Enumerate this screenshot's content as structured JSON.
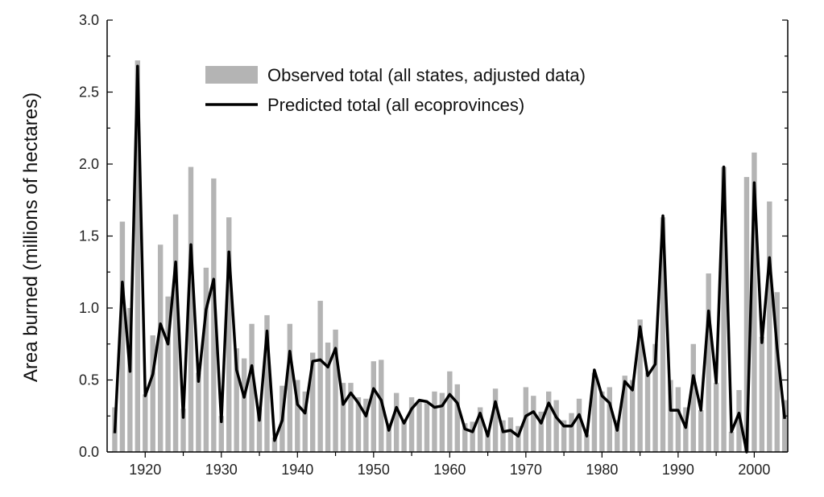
{
  "chart_data": {
    "type": "bar",
    "title": "",
    "xlabel": "",
    "ylabel": "Area burned (millions of hectares)",
    "xlim": [
      1915,
      2004.4
    ],
    "ylim": [
      0,
      3.0
    ],
    "grid": false,
    "legend_placement": "top-center",
    "yticks": [
      "0.0",
      "0.5",
      "1.0",
      "1.5",
      "2.0",
      "2.5",
      "3.0"
    ],
    "xticks": [
      "1920",
      "1930",
      "1940",
      "1950",
      "1960",
      "1970",
      "1980",
      "1990",
      "2000"
    ],
    "years": [
      1916,
      1917,
      1918,
      1919,
      1920,
      1921,
      1922,
      1923,
      1924,
      1925,
      1926,
      1927,
      1928,
      1929,
      1930,
      1931,
      1932,
      1933,
      1934,
      1935,
      1936,
      1937,
      1938,
      1939,
      1940,
      1941,
      1942,
      1943,
      1944,
      1945,
      1946,
      1947,
      1948,
      1949,
      1950,
      1951,
      1952,
      1953,
      1954,
      1955,
      1956,
      1957,
      1958,
      1959,
      1960,
      1961,
      1962,
      1963,
      1964,
      1965,
      1966,
      1967,
      1968,
      1969,
      1970,
      1971,
      1972,
      1973,
      1974,
      1975,
      1976,
      1977,
      1978,
      1979,
      1980,
      1981,
      1982,
      1983,
      1984,
      1985,
      1986,
      1987,
      1988,
      1989,
      1990,
      1991,
      1992,
      1993,
      1994,
      1995,
      1996,
      1997,
      1998,
      1999,
      2000,
      2001,
      2002,
      2003,
      2004
    ],
    "series": [
      {
        "name": "Observed total (all states, adjusted data)",
        "kind": "bar",
        "color": "#b4b4b4",
        "values": [
          0.31,
          1.6,
          1.0,
          2.72,
          0.4,
          0.81,
          1.44,
          1.08,
          1.65,
          0.3,
          1.98,
          0.55,
          1.28,
          1.9,
          0.25,
          1.63,
          0.72,
          0.65,
          0.89,
          0.3,
          0.95,
          0.1,
          0.46,
          0.89,
          0.5,
          0.42,
          0.69,
          1.05,
          0.76,
          0.85,
          0.48,
          0.48,
          0.38,
          0.37,
          0.63,
          0.64,
          0.2,
          0.41,
          0.22,
          0.38,
          0.36,
          0.34,
          0.42,
          0.41,
          0.56,
          0.47,
          0.2,
          0.21,
          0.31,
          0.15,
          0.44,
          0.22,
          0.24,
          0.18,
          0.45,
          0.39,
          0.28,
          0.42,
          0.36,
          0.22,
          0.27,
          0.37,
          0.12,
          0.55,
          0.42,
          0.45,
          0.22,
          0.53,
          0.5,
          0.92,
          0.55,
          0.75,
          1.63,
          0.5,
          0.45,
          0.31,
          0.75,
          0.29,
          1.24,
          0.48,
          1.98,
          0.14,
          0.43,
          1.91,
          2.08,
          0.8,
          1.74,
          1.11,
          0.36
        ]
      },
      {
        "name": "Predicted total (all ecoprovinces)",
        "kind": "line",
        "color": "#000000",
        "values": [
          0.13,
          1.18,
          0.56,
          2.68,
          0.39,
          0.54,
          0.89,
          0.75,
          1.32,
          0.24,
          1.44,
          0.49,
          0.99,
          1.2,
          0.21,
          1.39,
          0.57,
          0.38,
          0.6,
          0.22,
          0.84,
          0.08,
          0.22,
          0.7,
          0.33,
          0.27,
          0.63,
          0.64,
          0.59,
          0.72,
          0.33,
          0.41,
          0.34,
          0.25,
          0.44,
          0.36,
          0.15,
          0.31,
          0.2,
          0.3,
          0.36,
          0.35,
          0.31,
          0.32,
          0.4,
          0.34,
          0.16,
          0.14,
          0.27,
          0.11,
          0.35,
          0.14,
          0.15,
          0.11,
          0.25,
          0.28,
          0.2,
          0.34,
          0.24,
          0.18,
          0.18,
          0.26,
          0.11,
          0.57,
          0.39,
          0.34,
          0.15,
          0.49,
          0.43,
          0.87,
          0.53,
          0.61,
          1.64,
          0.29,
          0.29,
          0.17,
          0.53,
          0.29,
          0.98,
          0.48,
          1.98,
          0.14,
          0.27,
          0.0,
          1.87,
          0.76,
          1.35,
          0.72,
          0.23
        ]
      }
    ]
  }
}
